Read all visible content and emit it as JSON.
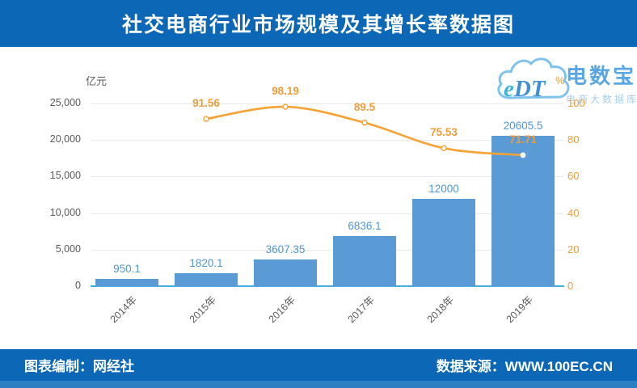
{
  "header": {
    "title": "社交电商行业市场规模及其增长率数据图"
  },
  "footer": {
    "credit": "图表编制：网经社",
    "source": "数据来源：WWW.100EC.CN"
  },
  "watermark": {
    "logo": "eDT",
    "brand": "电数宝",
    "tagline": "电商大数据库"
  },
  "theme": {
    "banner_blue": "#0C68B6",
    "footer_strip_blue": "#2C7FC3",
    "bar_blue": "#5B9BD5",
    "bar_label_blue": "#4E96D3",
    "line_orange": "#F7A233",
    "orange_label": "#ED9C3A",
    "axis_gray": "#595959",
    "grid_gray": "#E8E8E8",
    "x_axis_blue": "#44ADE3"
  },
  "chart_data": {
    "type": "bar",
    "subtype": "bar-line-combo",
    "title": "社交电商行业市场规模及其增长率数据图",
    "categories": [
      "2014年",
      "2015年",
      "2016年",
      "2017年",
      "2018年",
      "2019年"
    ],
    "series": [
      {
        "name": "市场规模",
        "type": "bar",
        "axis": "left",
        "unit": "亿元",
        "values": [
          950.1,
          1820.1,
          3607.35,
          6836.1,
          12000,
          20605.5
        ],
        "labels": [
          "950.1",
          "1820.1",
          "3607.35",
          "6836.1",
          "12000",
          "20605.5"
        ],
        "color": "#5B9BD5",
        "label_color": "#4E96D3"
      },
      {
        "name": "增长率",
        "type": "line",
        "axis": "right",
        "unit": "%",
        "categories": [
          "2015年",
          "2016年",
          "2017年",
          "2018年",
          "2019年"
        ],
        "values": [
          91.56,
          98.19,
          89.5,
          75.53,
          71.71
        ],
        "labels": [
          "91.56",
          "98.19",
          "89.5",
          "75.53",
          "71.71"
        ],
        "color": "#F7A233",
        "label_color": "#ED9C3A"
      }
    ],
    "left_axis": {
      "unit": "亿元",
      "min": 0,
      "max": 25000,
      "tick_values": [
        0,
        5000,
        10000,
        15000,
        20000,
        25000
      ],
      "tick_labels": [
        "0",
        "5,000",
        "10,000",
        "15,000",
        "20,000",
        "25,000"
      ]
    },
    "right_axis": {
      "unit": "%",
      "min": 0,
      "max": 100,
      "tick_values": [
        0,
        20,
        40,
        60,
        80,
        100
      ],
      "tick_labels": [
        "0",
        "20",
        "40",
        "60",
        "80",
        "100"
      ]
    },
    "grid": true,
    "legend": "none",
    "x_label_rotation": -45
  }
}
